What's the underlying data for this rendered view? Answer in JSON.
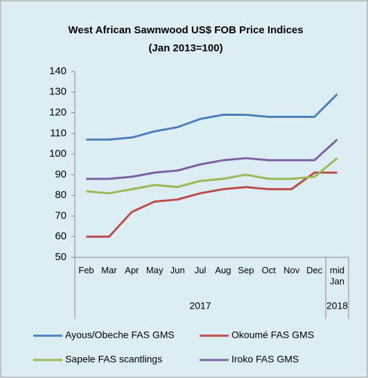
{
  "chart_data": {
    "type": "line",
    "title": "West African Sawnwood US$ FOB Price Indices",
    "subtitle": "(Jan 2013=100)",
    "categories": [
      "Feb",
      "Mar",
      "Apr",
      "May",
      "Jun",
      "Jul",
      "Aug",
      "Sep",
      "Oct",
      "Nov",
      "Dec",
      "mid Jan"
    ],
    "category_groups": [
      {
        "label": "2017",
        "span": 11
      },
      {
        "label": "2018",
        "span": 1
      }
    ],
    "series": [
      {
        "name": "Ayous/Obeche  FAS GMS",
        "color": "#4a7ebb",
        "values": [
          107,
          107,
          108,
          111,
          113,
          117,
          119,
          119,
          118,
          118,
          118,
          129
        ]
      },
      {
        "name": "Okoumé  FAS GMS",
        "color": "#be4b48",
        "values": [
          60,
          60,
          72,
          77,
          78,
          81,
          83,
          84,
          83,
          83,
          91,
          91
        ]
      },
      {
        "name": "Sapele FAS scantlings",
        "color": "#98b954",
        "values": [
          82,
          81,
          83,
          85,
          84,
          87,
          88,
          90,
          88,
          88,
          89,
          98
        ]
      },
      {
        "name": "Iroko FAS GMS",
        "color": "#7d60a0",
        "values": [
          88,
          88,
          89,
          91,
          92,
          95,
          97,
          98,
          97,
          97,
          97,
          107
        ]
      }
    ],
    "ylim": [
      50,
      140
    ],
    "yticks": [
      50,
      60,
      70,
      80,
      90,
      100,
      110,
      120,
      130,
      140
    ],
    "grid": false,
    "legend": "bottom"
  }
}
